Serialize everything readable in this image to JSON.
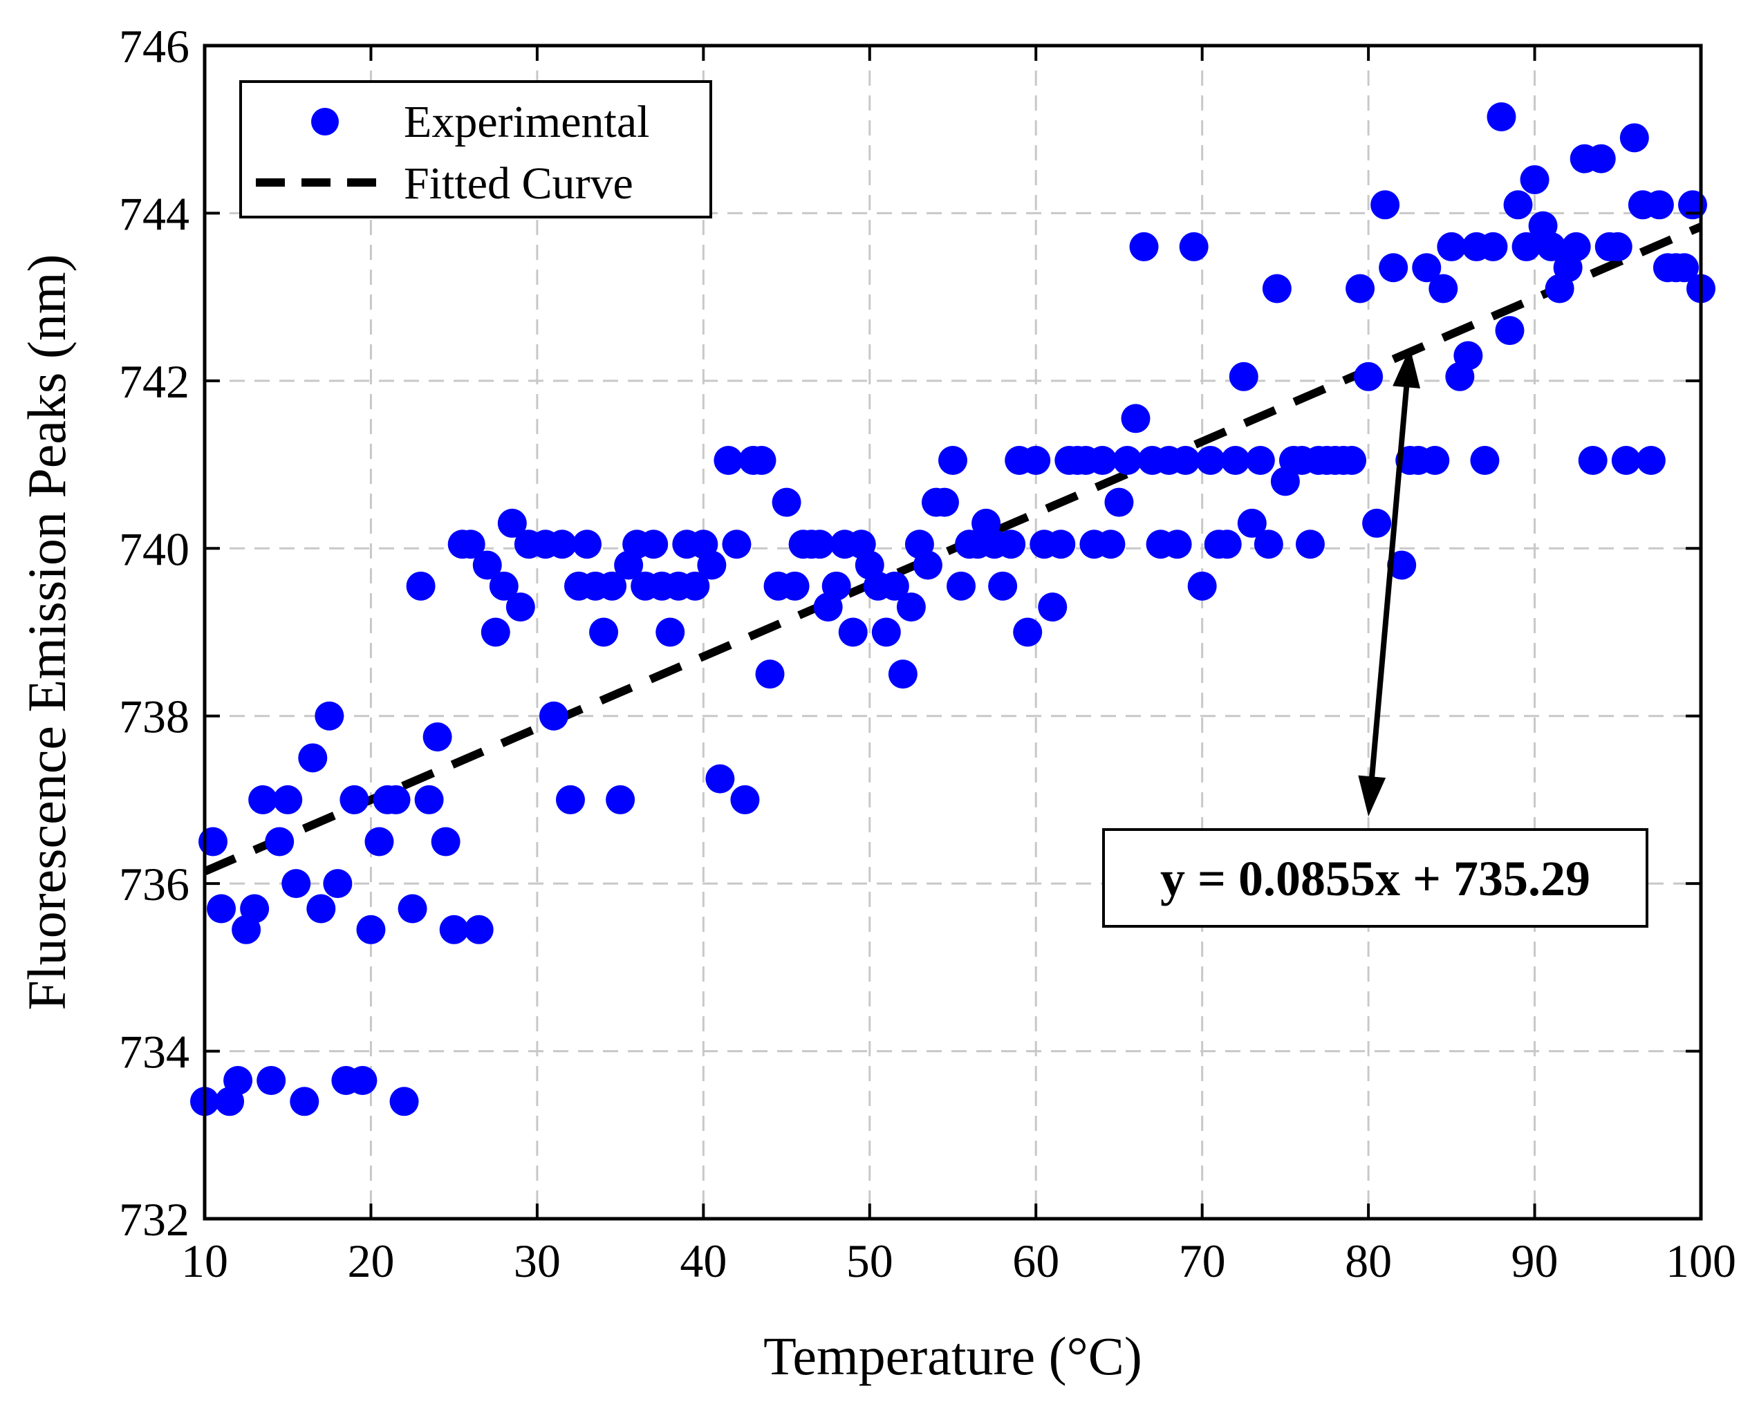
{
  "chart_data": {
    "type": "scatter",
    "title": "",
    "xlabel": "Temperature (°C)",
    "ylabel": "Fluorescence Emission Peaks (nm)",
    "xlim": [
      10,
      100
    ],
    "ylim": [
      732,
      746
    ],
    "x_ticks": [
      10,
      20,
      30,
      40,
      50,
      60,
      70,
      80,
      90,
      100
    ],
    "y_ticks": [
      732,
      734,
      736,
      738,
      740,
      742,
      744,
      746
    ],
    "x_tick_labels": [
      "10",
      "20",
      "30",
      "40",
      "50",
      "60",
      "70",
      "80",
      "90",
      "100"
    ],
    "y_tick_labels": [
      "732",
      "734",
      "736",
      "738",
      "740",
      "742",
      "744",
      "746"
    ],
    "grid": true,
    "legend": {
      "placement": "top-left",
      "entries": [
        "Experimental",
        "Fitted Curve"
      ]
    },
    "colors": {
      "points": "#0000ff",
      "fit": "#000000",
      "grid": "#c8c8c8"
    },
    "fit": {
      "label": "Fitted Curve",
      "slope": 0.0855,
      "intercept": 735.29,
      "x_range": [
        10,
        100
      ]
    },
    "annotation": {
      "text": "y = 0.0855x + 735.29",
      "arrow_from": [
        80,
        736.8
      ],
      "arrow_to": [
        82.5,
        742.4
      ]
    },
    "series": [
      {
        "name": "Experimental",
        "points": [
          [
            10,
            733.4
          ],
          [
            10.5,
            736.5
          ],
          [
            11,
            735.7
          ],
          [
            11.5,
            733.4
          ],
          [
            12,
            733.65
          ],
          [
            12.5,
            735.45
          ],
          [
            13,
            735.7
          ],
          [
            13.5,
            737
          ],
          [
            14,
            733.65
          ],
          [
            14.5,
            736.5
          ],
          [
            15,
            737
          ],
          [
            15.5,
            736
          ],
          [
            16,
            733.4
          ],
          [
            16.5,
            737.5
          ],
          [
            17,
            735.7
          ],
          [
            17.5,
            738
          ],
          [
            18,
            736
          ],
          [
            18.5,
            733.65
          ],
          [
            19,
            737
          ],
          [
            19.5,
            733.65
          ],
          [
            20,
            735.45
          ],
          [
            20.5,
            736.5
          ],
          [
            21,
            737
          ],
          [
            21.5,
            737
          ],
          [
            22,
            733.4
          ],
          [
            22.5,
            735.7
          ],
          [
            23,
            739.55
          ],
          [
            23.5,
            737
          ],
          [
            24,
            737.75
          ],
          [
            24.5,
            736.5
          ],
          [
            25,
            735.45
          ],
          [
            25.5,
            740.05
          ],
          [
            26,
            740.05
          ],
          [
            26.5,
            735.45
          ],
          [
            27,
            739.8
          ],
          [
            27.5,
            739
          ],
          [
            28,
            739.55
          ],
          [
            28.5,
            740.3
          ],
          [
            29,
            739.3
          ],
          [
            29.5,
            740.05
          ],
          [
            30.5,
            740.05
          ],
          [
            31,
            738
          ],
          [
            31.5,
            740.05
          ],
          [
            32,
            737
          ],
          [
            32.5,
            739.55
          ],
          [
            33,
            740.05
          ],
          [
            33.5,
            739.55
          ],
          [
            34,
            739
          ],
          [
            34.5,
            739.55
          ],
          [
            35,
            737
          ],
          [
            35.5,
            739.8
          ],
          [
            36,
            740.05
          ],
          [
            36.5,
            739.55
          ],
          [
            37,
            740.05
          ],
          [
            37.5,
            739.55
          ],
          [
            38,
            739
          ],
          [
            38.5,
            739.55
          ],
          [
            39,
            740.05
          ],
          [
            39.5,
            739.55
          ],
          [
            40,
            740.05
          ],
          [
            40.5,
            739.8
          ],
          [
            41,
            737.25
          ],
          [
            41.5,
            741.05
          ],
          [
            42,
            740.05
          ],
          [
            42.5,
            737
          ],
          [
            43,
            741.05
          ],
          [
            43.5,
            741.05
          ],
          [
            44,
            738.5
          ],
          [
            44.5,
            739.55
          ],
          [
            45,
            740.55
          ],
          [
            45.5,
            739.55
          ],
          [
            46,
            740.05
          ],
          [
            46.5,
            740.05
          ],
          [
            47,
            740.05
          ],
          [
            47.5,
            739.3
          ],
          [
            48,
            739.55
          ],
          [
            48.5,
            740.05
          ],
          [
            49,
            739
          ],
          [
            49.5,
            740.05
          ],
          [
            50,
            739.8
          ],
          [
            50.5,
            739.55
          ],
          [
            51,
            739
          ],
          [
            51.5,
            739.55
          ],
          [
            52,
            738.5
          ],
          [
            52.5,
            739.3
          ],
          [
            53,
            740.05
          ],
          [
            53.5,
            739.8
          ],
          [
            54,
            740.55
          ],
          [
            54.5,
            740.55
          ],
          [
            55,
            741.05
          ],
          [
            55.5,
            739.55
          ],
          [
            56,
            740.05
          ],
          [
            56.5,
            740.05
          ],
          [
            57,
            740.3
          ],
          [
            57.5,
            740.05
          ],
          [
            58,
            739.55
          ],
          [
            58.5,
            740.05
          ],
          [
            59,
            741.05
          ],
          [
            59.5,
            739
          ],
          [
            60,
            741.05
          ],
          [
            60.5,
            740.05
          ],
          [
            61,
            739.3
          ],
          [
            61.5,
            740.05
          ],
          [
            62,
            741.05
          ],
          [
            62.5,
            741.05
          ],
          [
            63,
            741.05
          ],
          [
            63.5,
            740.05
          ],
          [
            64,
            741.05
          ],
          [
            64.5,
            740.05
          ],
          [
            65,
            740.55
          ],
          [
            65.5,
            741.05
          ],
          [
            66,
            741.55
          ],
          [
            66.5,
            743.6
          ],
          [
            67,
            741.05
          ],
          [
            67.5,
            740.05
          ],
          [
            68,
            741.05
          ],
          [
            68.5,
            740.05
          ],
          [
            69,
            741.05
          ],
          [
            69.5,
            743.6
          ],
          [
            70,
            739.55
          ],
          [
            70.5,
            741.05
          ],
          [
            71,
            740.05
          ],
          [
            71.5,
            740.05
          ],
          [
            72,
            741.05
          ],
          [
            72.5,
            742.05
          ],
          [
            73,
            740.3
          ],
          [
            73.5,
            741.05
          ],
          [
            74,
            740.05
          ],
          [
            74.5,
            743.1
          ],
          [
            75,
            740.8
          ],
          [
            75.5,
            741.05
          ],
          [
            76,
            741.05
          ],
          [
            76.5,
            740.05
          ],
          [
            77,
            741.05
          ],
          [
            77.5,
            741.05
          ],
          [
            78,
            741.05
          ],
          [
            78.5,
            741.05
          ],
          [
            79,
            741.05
          ],
          [
            79.5,
            743.1
          ],
          [
            80,
            742.05
          ],
          [
            80.5,
            740.3
          ],
          [
            81,
            744.1
          ],
          [
            81.5,
            743.35
          ],
          [
            82,
            739.8
          ],
          [
            82.5,
            741.05
          ],
          [
            83,
            741.05
          ],
          [
            83.5,
            743.35
          ],
          [
            84,
            741.05
          ],
          [
            84.5,
            743.1
          ],
          [
            85,
            743.6
          ],
          [
            85.5,
            742.05
          ],
          [
            86,
            742.3
          ],
          [
            86.5,
            743.6
          ],
          [
            87,
            741.05
          ],
          [
            87.5,
            743.6
          ],
          [
            88,
            745.15
          ],
          [
            88.5,
            742.6
          ],
          [
            89,
            744.1
          ],
          [
            89.5,
            743.6
          ],
          [
            90,
            744.4
          ],
          [
            90.5,
            743.85
          ],
          [
            91,
            743.6
          ],
          [
            91.5,
            743.1
          ],
          [
            92,
            743.35
          ],
          [
            92.5,
            743.6
          ],
          [
            93,
            744.65
          ],
          [
            93.5,
            741.05
          ],
          [
            94,
            744.65
          ],
          [
            94.5,
            743.6
          ],
          [
            95,
            743.6
          ],
          [
            95.5,
            741.05
          ],
          [
            96,
            744.9
          ],
          [
            96.5,
            744.1
          ],
          [
            97,
            741.05
          ],
          [
            97.5,
            744.1
          ],
          [
            98,
            743.35
          ],
          [
            98.5,
            743.35
          ],
          [
            99,
            743.35
          ],
          [
            99.5,
            744.1
          ],
          [
            100,
            743.1
          ]
        ]
      }
    ]
  }
}
